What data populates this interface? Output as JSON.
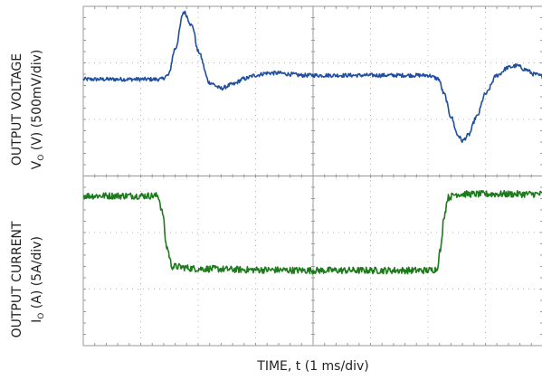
{
  "chart_data": {
    "type": "line",
    "xlabel": "TIME, t (1 ms/div)",
    "ylabel_voltage_line1": "OUTPUT VOLTAGE",
    "ylabel_voltage_line2": "V",
    "ylabel_voltage_sub": "O",
    "ylabel_voltage_line2_rest": " (V) (500mV/div)",
    "ylabel_current_line1": "OUTPUT CURRENT",
    "ylabel_current_line2": "I",
    "ylabel_current_sub": "O",
    "ylabel_current_line2_rest": " (A) (5A/div)",
    "divisions_x": 8,
    "divisions_y": 6,
    "xlim_div": [
      0,
      8
    ],
    "grid": true,
    "series": [
      {
        "color": "#1f4fa0",
        "unit_note": "voltage trace, y in divisions from bottom",
        "x": [
          0.0,
          0.5,
          1.0,
          1.35,
          1.48,
          1.6,
          1.75,
          1.9,
          2.0,
          2.2,
          2.4,
          2.6,
          2.8,
          3.0,
          3.2,
          3.4,
          3.6,
          3.8,
          4.0,
          4.5,
          5.0,
          5.5,
          6.0,
          6.18,
          6.28,
          6.4,
          6.52,
          6.6,
          6.7,
          6.85,
          7.0,
          7.2,
          7.4,
          7.55,
          7.7,
          7.85,
          8.0
        ],
        "y": [
          4.71,
          4.71,
          4.71,
          4.71,
          4.78,
          5.25,
          5.9,
          5.65,
          5.2,
          4.65,
          4.55,
          4.62,
          4.72,
          4.78,
          4.82,
          4.82,
          4.8,
          4.78,
          4.78,
          4.78,
          4.78,
          4.78,
          4.78,
          4.72,
          4.45,
          4.05,
          3.72,
          3.62,
          3.72,
          4.05,
          4.45,
          4.78,
          4.92,
          4.95,
          4.88,
          4.8,
          4.76
        ]
      },
      {
        "color": "#1d7a1d",
        "unit_note": "current trace, y in divisions from bottom",
        "x": [
          0.0,
          0.5,
          1.0,
          1.3,
          1.38,
          1.45,
          1.55,
          2.0,
          3.0,
          4.0,
          5.0,
          6.0,
          6.15,
          6.22,
          6.28,
          6.35,
          6.5,
          7.0,
          7.5,
          8.0
        ],
        "y": [
          2.65,
          2.65,
          2.65,
          2.65,
          2.35,
          1.75,
          1.4,
          1.36,
          1.34,
          1.33,
          1.33,
          1.33,
          1.35,
          1.7,
          2.3,
          2.62,
          2.68,
          2.68,
          2.68,
          2.68
        ]
      }
    ]
  }
}
